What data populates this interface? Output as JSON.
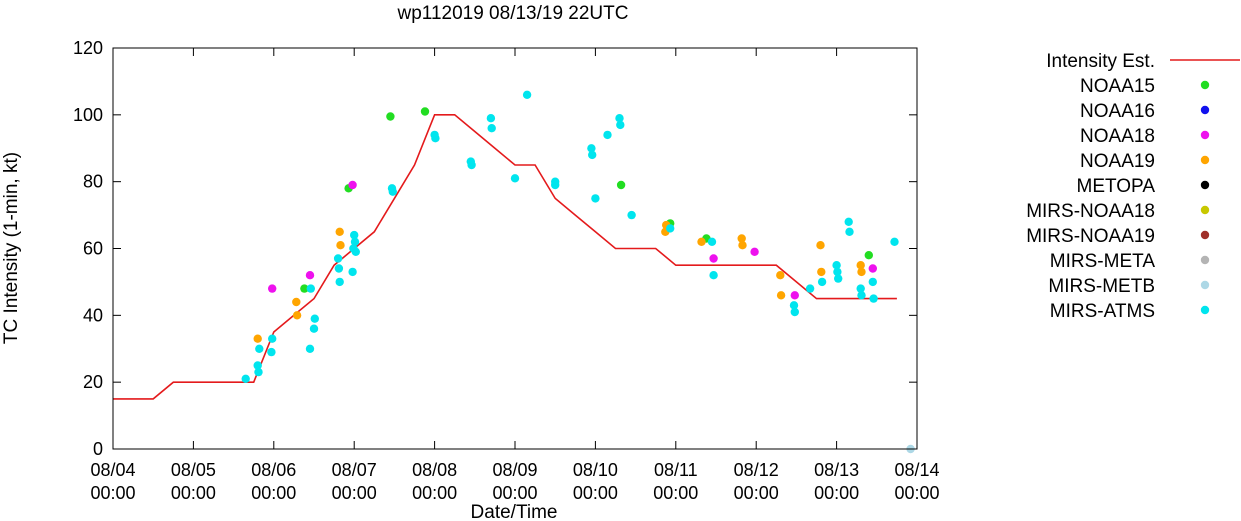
{
  "chart_data": {
    "type": "scatter",
    "title": "wp112019 08/13/19 22UTC",
    "xlabel": "Date/Time",
    "ylabel": "TC Intensity (1-min, kt)",
    "xlim": [
      0,
      10
    ],
    "ylim": [
      0,
      120
    ],
    "x_tick_values": [
      0,
      1,
      2,
      3,
      4,
      5,
      6,
      7,
      8,
      9,
      10
    ],
    "x_tick_labels": [
      [
        "08/04",
        "00:00"
      ],
      [
        "08/05",
        "00:00"
      ],
      [
        "08/06",
        "00:00"
      ],
      [
        "08/07",
        "00:00"
      ],
      [
        "08/08",
        "00:00"
      ],
      [
        "08/09",
        "00:00"
      ],
      [
        "08/10",
        "00:00"
      ],
      [
        "08/11",
        "00:00"
      ],
      [
        "08/12",
        "00:00"
      ],
      [
        "08/13",
        "00:00"
      ],
      [
        "08/14",
        "00:00"
      ]
    ],
    "y_ticks": [
      0,
      20,
      40,
      60,
      80,
      100,
      120
    ],
    "legend_position": "right",
    "intensity_line": {
      "name": "Intensity Est.",
      "color": "#e41a1c",
      "x": [
        0,
        0.5,
        0.75,
        1.5,
        1.75,
        2.0,
        2.25,
        2.5,
        2.75,
        3.0,
        3.25,
        3.5,
        3.75,
        4.0,
        4.25,
        4.5,
        4.75,
        5.0,
        5.25,
        5.5,
        5.75,
        6.0,
        6.25,
        6.5,
        6.75,
        7.0,
        7.25,
        7.5,
        7.75,
        8.0,
        8.25,
        8.5,
        8.75,
        9.0,
        9.25,
        9.5,
        9.75
      ],
      "y": [
        15,
        15,
        20,
        20,
        20,
        35,
        40,
        45,
        55,
        60,
        65,
        75,
        85,
        100,
        100,
        95,
        90,
        85,
        85,
        75,
        70,
        65,
        60,
        60,
        60,
        55,
        55,
        55,
        55,
        55,
        55,
        50,
        45,
        45,
        45,
        45,
        45
      ]
    },
    "series": [
      {
        "name": "NOAA15",
        "color": "#22dd22",
        "points": [
          [
            2.38,
            48
          ],
          [
            2.93,
            78
          ],
          [
            3.45,
            99.5
          ],
          [
            3.88,
            101
          ],
          [
            6.32,
            79
          ],
          [
            6.93,
            67.5
          ],
          [
            7.38,
            63
          ],
          [
            9.4,
            58
          ]
        ]
      },
      {
        "name": "NOAA16",
        "color": "#1111ee",
        "points": []
      },
      {
        "name": "NOAA18",
        "color": "#ee11ee",
        "points": [
          [
            1.98,
            48
          ],
          [
            2.45,
            52
          ],
          [
            2.98,
            79
          ],
          [
            7.47,
            57
          ],
          [
            7.98,
            59
          ],
          [
            8.48,
            46
          ],
          [
            9.45,
            54
          ]
        ]
      },
      {
        "name": "NOAA19",
        "color": "#ffa500",
        "points": [
          [
            1.8,
            33
          ],
          [
            2.28,
            44
          ],
          [
            2.29,
            40
          ],
          [
            2.82,
            65
          ],
          [
            2.83,
            61
          ],
          [
            6.87,
            65
          ],
          [
            6.88,
            67
          ],
          [
            7.32,
            62
          ],
          [
            7.82,
            63
          ],
          [
            7.83,
            61
          ],
          [
            8.3,
            52
          ],
          [
            8.31,
            46
          ],
          [
            8.8,
            61
          ],
          [
            8.81,
            53
          ],
          [
            9.3,
            55
          ],
          [
            9.31,
            53
          ]
        ]
      },
      {
        "name": "METOPA",
        "color": "#000000",
        "points": []
      },
      {
        "name": "MIRS-NOAA18",
        "color": "#c8c800",
        "points": []
      },
      {
        "name": "MIRS-NOAA19",
        "color": "#a0302a",
        "points": []
      },
      {
        "name": "MIRS-META",
        "color": "#b4b4b4",
        "points": []
      },
      {
        "name": "MIRS-METB",
        "color": "#add8e6",
        "points": [
          [
            9.92,
            0
          ]
        ]
      },
      {
        "name": "MIRS-ATMS",
        "color": "#00e5ee",
        "points": [
          [
            1.65,
            21
          ],
          [
            1.8,
            25
          ],
          [
            1.81,
            23
          ],
          [
            1.82,
            30
          ],
          [
            1.97,
            29
          ],
          [
            1.98,
            33
          ],
          [
            2.45,
            30
          ],
          [
            2.46,
            48
          ],
          [
            2.5,
            36
          ],
          [
            2.51,
            39
          ],
          [
            2.8,
            57
          ],
          [
            2.81,
            54
          ],
          [
            2.82,
            50
          ],
          [
            2.98,
            53
          ],
          [
            2.99,
            60
          ],
          [
            3.0,
            64
          ],
          [
            3.01,
            62
          ],
          [
            3.02,
            59
          ],
          [
            3.47,
            78
          ],
          [
            3.48,
            77
          ],
          [
            4.0,
            94
          ],
          [
            4.01,
            93
          ],
          [
            4.45,
            86
          ],
          [
            4.46,
            85
          ],
          [
            4.7,
            99
          ],
          [
            4.71,
            96
          ],
          [
            5.0,
            81
          ],
          [
            5.15,
            106
          ],
          [
            5.5,
            79
          ],
          [
            5.5,
            80
          ],
          [
            5.95,
            90
          ],
          [
            5.96,
            88
          ],
          [
            6.0,
            75
          ],
          [
            6.15,
            94
          ],
          [
            6.3,
            99
          ],
          [
            6.31,
            97
          ],
          [
            6.45,
            70
          ],
          [
            6.93,
            66
          ],
          [
            7.45,
            62
          ],
          [
            7.47,
            52
          ],
          [
            8.47,
            43
          ],
          [
            8.48,
            41
          ],
          [
            8.67,
            48
          ],
          [
            8.82,
            50
          ],
          [
            9.0,
            55
          ],
          [
            9.01,
            53
          ],
          [
            9.02,
            51
          ],
          [
            9.15,
            68
          ],
          [
            9.16,
            65
          ],
          [
            9.3,
            48
          ],
          [
            9.31,
            46
          ],
          [
            9.45,
            50
          ],
          [
            9.46,
            45
          ],
          [
            9.72,
            62
          ]
        ]
      }
    ]
  }
}
